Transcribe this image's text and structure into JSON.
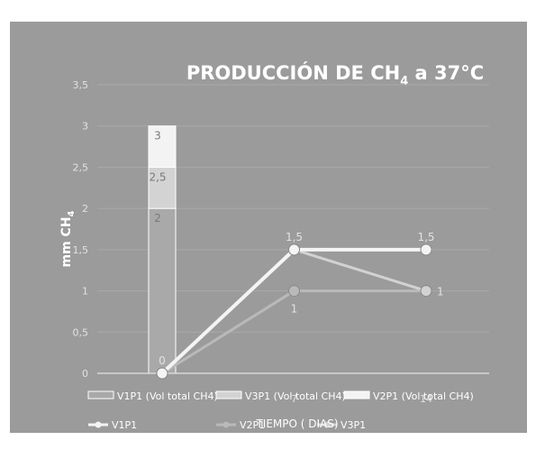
{
  "chart_data": {
    "type": "bar",
    "title": "PRODUCCIÓN DE CH",
    "title_subscript": "4",
    "title_suffix": " a 37°C",
    "ylabel": "mm CH",
    "ylabel_subscript": "4",
    "xlabel": "TIEMPO ( DIAS)",
    "ylim": [
      0,
      3.5
    ],
    "yticks": [
      "0",
      "0,5",
      "1",
      "1,5",
      "2",
      "2,5",
      "3",
      "3,5"
    ],
    "grid": true,
    "legend_position": "bottom",
    "x_positions": [
      0,
      7,
      14
    ],
    "x_tick_labels": [
      "0",
      "7",
      "14"
    ],
    "bar_series": [
      {
        "name": "V1P1 (Vol total CH4)",
        "values": [
          2
        ]
      },
      {
        "name": "V3P1 (Vol total CH4)",
        "values": [
          0.5
        ]
      },
      {
        "name": "V2P1 (Vol total CH4)",
        "values": [
          0.5
        ]
      }
    ],
    "bar_labels": [
      "2",
      "2,5",
      "3"
    ],
    "line_series": [
      {
        "name": "V1P1",
        "values": [
          0,
          1.5,
          1.5
        ]
      },
      {
        "name": "V2P1",
        "values": [
          0,
          1,
          1
        ]
      },
      {
        "name": "V3P1",
        "values": [
          0,
          1.5,
          1
        ]
      }
    ],
    "point_labels": [
      {
        "x": 0,
        "y": 0,
        "text": "0",
        "pos": "above"
      },
      {
        "x": 7,
        "y": 1.5,
        "text": "1,5",
        "pos": "above"
      },
      {
        "x": 14,
        "y": 1.5,
        "text": "1,5",
        "pos": "above"
      },
      {
        "x": 7,
        "y": 1,
        "text": "1",
        "pos": "below"
      },
      {
        "x": 14,
        "y": 1,
        "text": "1",
        "pos": "right"
      }
    ],
    "colors": {
      "frame": "#ffffff",
      "background": "#9b9b9b",
      "grid": "#a9a9a9",
      "axis": "#d8d8d8",
      "text": "#ffffff",
      "tick_text": "#e2e2e2",
      "bar_v1p1": "#a9a9a9",
      "bar_v3p1": "#d3d3d3",
      "bar_v2p1": "#f3f3f3",
      "line_v1p1": "#f4f4f4",
      "line_v2p1": "#b9b9b9",
      "line_v3p1": "#d2d2d2"
    }
  }
}
